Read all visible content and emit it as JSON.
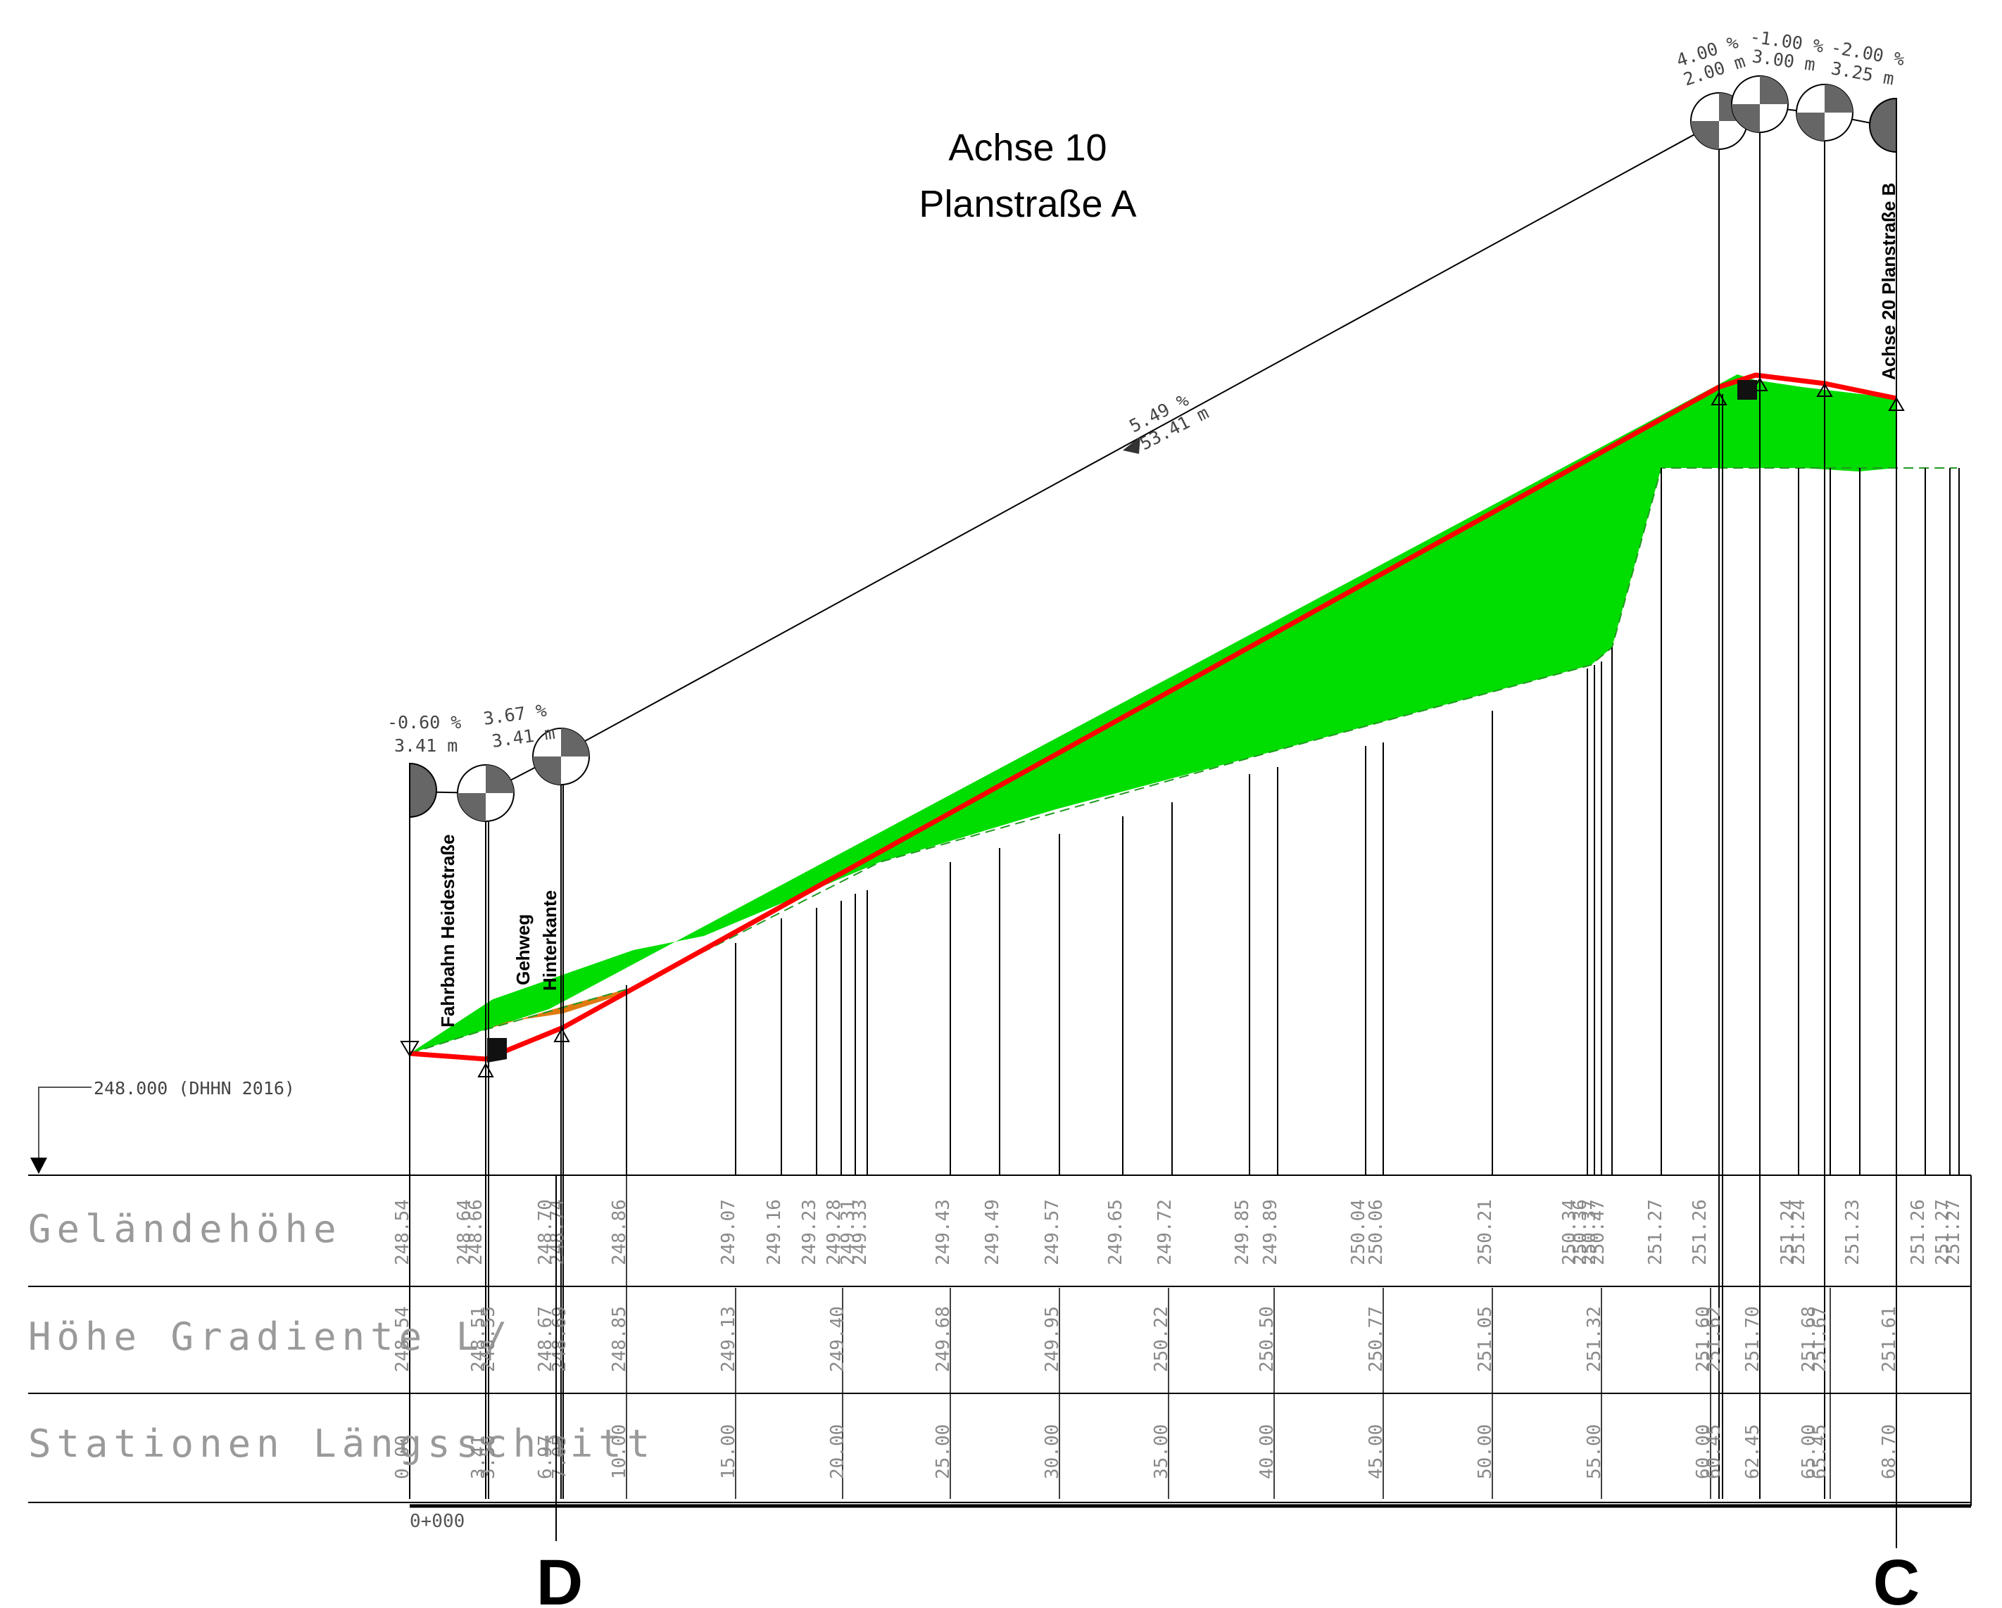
{
  "title": {
    "line1": "Achse 10",
    "line2": "Planstraße A"
  },
  "labels": {
    "fahrbahn": "Fahrbahn Heidestraße",
    "gehweg_1": "Gehweg",
    "gehweg_2": "Hinterkante",
    "achse20": "Achse 20 Planstraße B",
    "datum": "248.000 (DHHN 2016)",
    "start_station": "0+000",
    "marker_left": "D",
    "marker_right": "C"
  },
  "row_labels": {
    "gelaende": "Geländehöhe",
    "gradiente": "Höhe Gradiente L/",
    "stationen": "Stationen Längsschnitt"
  },
  "slopes": {
    "s1_pct": "-0.60 %",
    "s1_len": "3.41 m",
    "s2_pct": "3.67 %",
    "s2_len": "3.41 m",
    "main_pct": "5.49 %",
    "main_len": "53.41 m",
    "t1_pct": "4.00 %",
    "t1_len": "2.00 m",
    "t2_pct": "-1.00 %",
    "t2_len": "3.00 m",
    "t3_pct": "-2.00 %",
    "t3_len": "3.25 m"
  },
  "colors": {
    "fill": "#00dd00",
    "gradient_line": "#ff0000",
    "cut_fill": "#e07a10",
    "lines": "#000000"
  },
  "table": {
    "gelaende": [
      "248.54",
      "248.64",
      "248.66",
      "248.70",
      "248.74",
      "248.86",
      "249.07",
      "249.16",
      "249.23",
      "249.28",
      "249.31",
      "249.33",
      "249.43",
      "249.49",
      "249.57",
      "249.65",
      "249.72",
      "249.85",
      "249.89",
      "250.04",
      "250.06",
      "250.21",
      "250.34",
      "250.36",
      "250.37",
      "250.47",
      "251.27",
      "251.26",
      "251.24",
      "251.24",
      "251.23",
      "251.26",
      "251.27",
      "251.27"
    ],
    "gradiente": [
      "248.54",
      "248.51",
      "248.55",
      "248.67",
      "248.69",
      "248.85",
      "249.13",
      "249.40",
      "249.68",
      "249.95",
      "250.22",
      "250.50",
      "250.77",
      "251.05",
      "251.32",
      "251.60",
      "251.62",
      "251.70",
      "251.68",
      "251.67",
      "251.61"
    ],
    "stationen": [
      "0.00",
      "3.41",
      "3.56",
      "6.97",
      "7.05",
      "10.00",
      "15.00",
      "20.00",
      "25.00",
      "30.00",
      "35.00",
      "40.00",
      "45.00",
      "50.00",
      "55.00",
      "60.00",
      "60.45",
      "62.45",
      "65.00",
      "65.45",
      "68.70"
    ]
  }
}
